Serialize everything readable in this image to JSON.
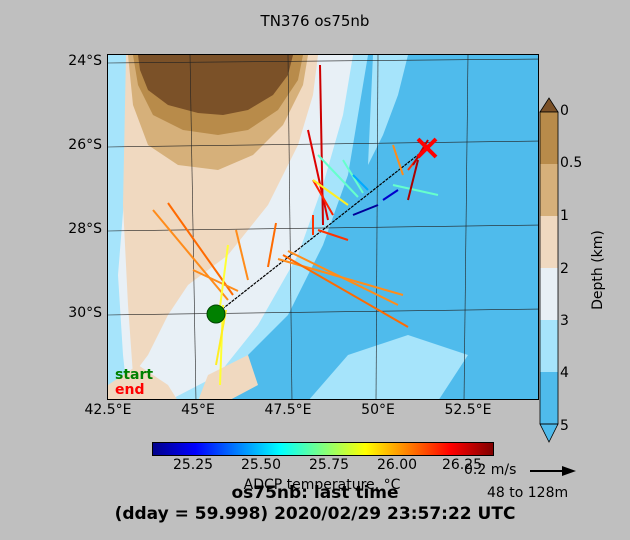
{
  "title": "TN376 os75nb",
  "map": {
    "lat_labels": [
      "24°S",
      "26°S",
      "28°S",
      "30°S"
    ],
    "lon_labels": [
      "42.5°E",
      "45°E",
      "47.5°E",
      "50°E",
      "52.5°E"
    ],
    "start_label": "start",
    "end_label": "end",
    "colors": {
      "land": "#7b5128",
      "depth_0_05": "#b88b4a",
      "depth_05_1": "#d6b07a",
      "depth_1_2": "#f0d9c0",
      "depth_2_3": "#e8f0f6",
      "depth_3_4": "#a6e4fb",
      "depth_4_5": "#55bff0",
      "start_marker": "#008000",
      "end_marker": "#ff0000"
    }
  },
  "depth_colorbar": {
    "label": "Depth (km)",
    "ticks": [
      "0",
      "0.5",
      "1",
      "2",
      "3",
      "4",
      "5"
    ]
  },
  "temp_colorbar": {
    "label": "ADCP temperature, °C",
    "ticks": [
      "25.25",
      "25.50",
      "25.75",
      "26.00",
      "26.25"
    ]
  },
  "scale": {
    "speed": "0.2 m/s",
    "depth_range": "48 to 128m"
  },
  "footer": {
    "line1": "os75nb: last time",
    "line2": "(dday = 59.998) 2020/02/29 23:57:22 UTC"
  }
}
